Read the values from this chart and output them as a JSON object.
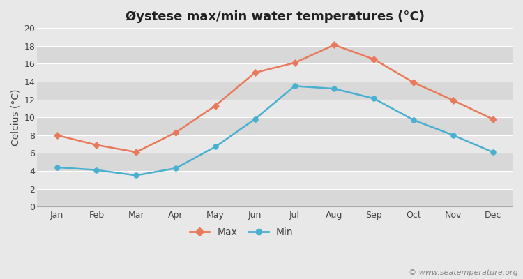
{
  "title": "Øystese max/min water temperatures (°C)",
  "months": [
    "Jan",
    "Feb",
    "Mar",
    "Apr",
    "May",
    "Jun",
    "Jul",
    "Aug",
    "Sep",
    "Oct",
    "Nov",
    "Dec"
  ],
  "max_values": [
    8.0,
    6.9,
    6.1,
    8.3,
    11.3,
    15.0,
    16.1,
    18.1,
    16.5,
    13.9,
    11.9,
    9.8
  ],
  "min_values": [
    4.4,
    4.1,
    3.5,
    4.3,
    6.7,
    9.8,
    13.5,
    13.2,
    12.1,
    9.7,
    8.0,
    6.1
  ],
  "max_color": "#e8795a",
  "min_color": "#4ab0d0",
  "background_color": "#e8e8e8",
  "band_colors": [
    "#d8d8d8",
    "#e8e8e8"
  ],
  "ylabel": "Celcius (°C)",
  "ylim": [
    0,
    20
  ],
  "yticks": [
    0,
    2,
    4,
    6,
    8,
    10,
    12,
    14,
    16,
    18,
    20
  ],
  "grid_color": "#ffffff",
  "watermark": "© www.seatemperature.org",
  "legend_max": "Max",
  "legend_min": "Min",
  "title_fontsize": 13,
  "label_fontsize": 10,
  "tick_fontsize": 9,
  "watermark_fontsize": 8
}
